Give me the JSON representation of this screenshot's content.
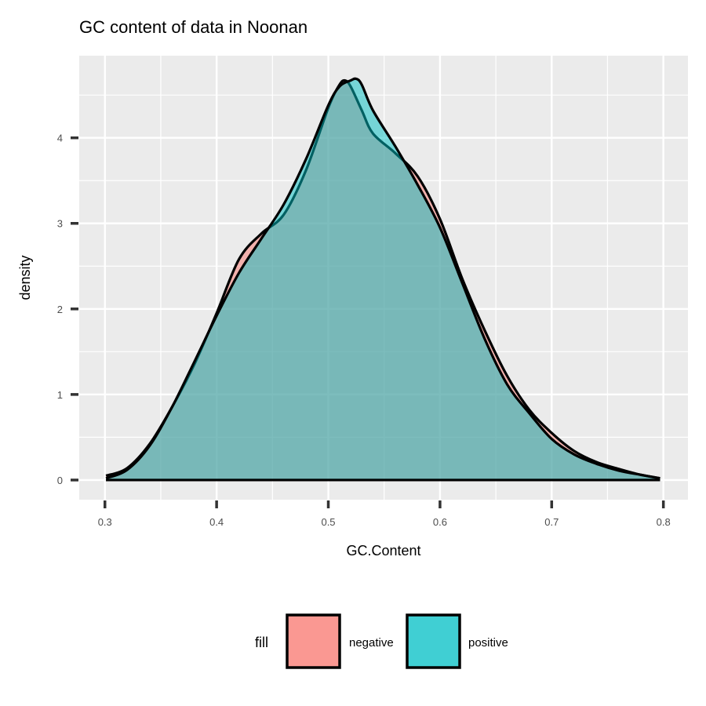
{
  "chart_data": {
    "type": "area",
    "title": "GC content of data in Noonan",
    "xlabel": "GC.Content",
    "ylabel": "density",
    "xlim": [
      0.277,
      0.822
    ],
    "ylim": [
      -0.23,
      4.96
    ],
    "x_ticks": [
      0.3,
      0.4,
      0.5,
      0.6,
      0.7,
      0.8
    ],
    "x_tick_labels": [
      "0.3",
      "0.4",
      "0.5",
      "0.6",
      "0.7",
      "0.8"
    ],
    "y_ticks": [
      0,
      1,
      2,
      3,
      4
    ],
    "y_tick_labels": [
      "0",
      "1",
      "2",
      "3",
      "4"
    ],
    "grid": true,
    "panel_background": "#ebebeb",
    "legend": {
      "title": "fill",
      "position": "bottom"
    },
    "series": [
      {
        "name": "negative",
        "color": "#f8766d",
        "x": [
          0.301,
          0.32,
          0.34,
          0.36,
          0.38,
          0.4,
          0.42,
          0.44,
          0.46,
          0.48,
          0.5,
          0.51,
          0.515,
          0.52,
          0.53,
          0.54,
          0.56,
          0.58,
          0.6,
          0.62,
          0.64,
          0.66,
          0.68,
          0.7,
          0.72,
          0.74,
          0.76,
          0.78,
          0.797
        ],
        "y": [
          0.05,
          0.14,
          0.42,
          0.85,
          1.35,
          1.95,
          2.58,
          2.88,
          3.1,
          3.62,
          4.35,
          4.62,
          4.67,
          4.6,
          4.32,
          4.05,
          3.82,
          3.55,
          3.05,
          2.35,
          1.75,
          1.22,
          0.82,
          0.55,
          0.34,
          0.21,
          0.13,
          0.06,
          0.02
        ]
      },
      {
        "name": "positive",
        "color": "#00bfc4",
        "x": [
          0.301,
          0.32,
          0.34,
          0.36,
          0.38,
          0.4,
          0.42,
          0.44,
          0.46,
          0.48,
          0.5,
          0.51,
          0.52,
          0.525,
          0.53,
          0.54,
          0.56,
          0.58,
          0.6,
          0.62,
          0.64,
          0.66,
          0.68,
          0.7,
          0.72,
          0.74,
          0.76,
          0.78,
          0.797
        ],
        "y": [
          0.02,
          0.12,
          0.4,
          0.85,
          1.38,
          1.92,
          2.42,
          2.82,
          3.22,
          3.75,
          4.38,
          4.6,
          4.67,
          4.69,
          4.62,
          4.32,
          3.9,
          3.45,
          2.95,
          2.3,
          1.65,
          1.12,
          0.78,
          0.48,
          0.3,
          0.19,
          0.11,
          0.06,
          0.02
        ]
      }
    ]
  }
}
